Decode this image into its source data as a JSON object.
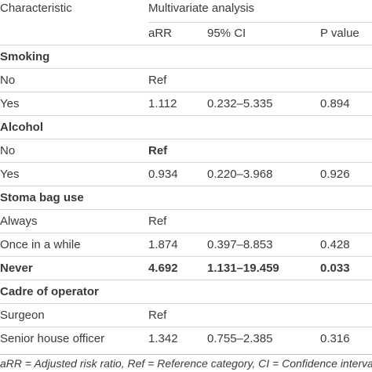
{
  "header": {
    "characteristic": "Characteristic",
    "group": "Multivariate analysis",
    "col_arr": "aRR",
    "col_ci": "95% CI",
    "col_p": "P value"
  },
  "rows": [
    {
      "label": "Smoking",
      "arr": "",
      "ci": "",
      "p": ""
    },
    {
      "label": "No",
      "arr": "Ref",
      "ci": "",
      "p": ""
    },
    {
      "label": "Yes",
      "arr": "1.112",
      "ci": "0.232–5.335",
      "p": "0.894"
    },
    {
      "label": "Alcohol",
      "arr": "",
      "ci": "",
      "p": ""
    },
    {
      "label": "No",
      "arr": "Ref",
      "ci": "",
      "p": ""
    },
    {
      "label": "Yes",
      "arr": "0.934",
      "ci": "0.220–3.968",
      "p": "0.926"
    },
    {
      "label": "Stoma bag use",
      "arr": "",
      "ci": "",
      "p": ""
    },
    {
      "label": "Always",
      "arr": "Ref",
      "ci": "",
      "p": ""
    },
    {
      "label": "Once in a while",
      "arr": "1.874",
      "ci": "0.397–8.853",
      "p": "0.428"
    },
    {
      "label": "Never",
      "arr": "4.692",
      "ci": "1.131–19.459",
      "p": "0.033"
    },
    {
      "label": "Cadre of operator",
      "arr": "",
      "ci": "",
      "p": ""
    },
    {
      "label": "Surgeon",
      "arr": "Ref",
      "ci": "",
      "p": ""
    },
    {
      "label": "Senior house officer",
      "arr": "1.342",
      "ci": "0.755–2.385",
      "p": "0.316"
    }
  ],
  "footnote": "aRR = Adjusted risk ratio, Ref = Reference category, CI = Confidence interval"
}
